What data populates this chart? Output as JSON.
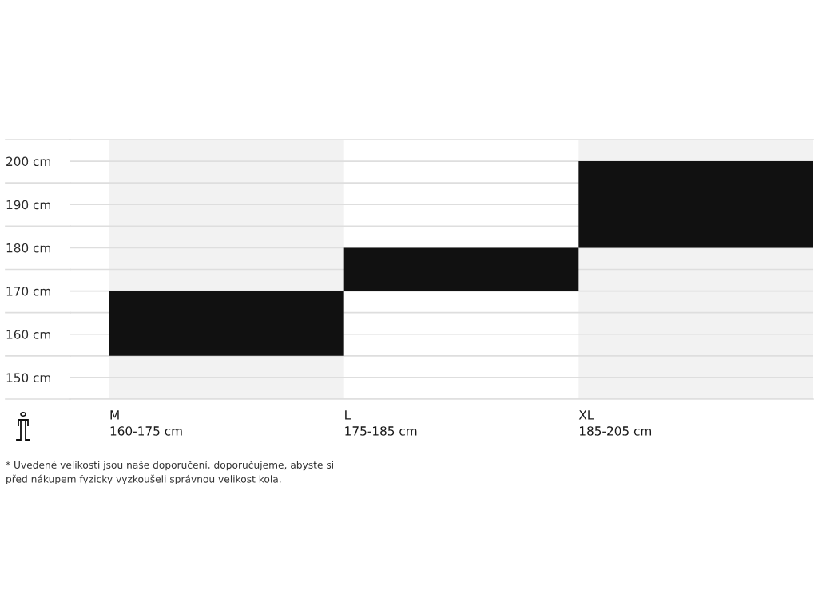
{
  "chart_data": {
    "type": "bar",
    "categories": [
      "M\n160-175 cm",
      "L\n175-185 cm",
      "XL\n185-205 cm"
    ],
    "base": [
      155,
      170,
      180
    ],
    "values": [
      15,
      10,
      20
    ],
    "color": "#111111",
    "ylim": [
      145,
      205
    ],
    "yticks": [
      {
        "value": 145,
        "label": null
      },
      {
        "value": 150,
        "label": "150 cm"
      },
      {
        "value": 155,
        "label": null
      },
      {
        "value": 160,
        "label": "160 cm"
      },
      {
        "value": 165,
        "label": null
      },
      {
        "value": 170,
        "label": "170 cm"
      },
      {
        "value": 175,
        "label": null
      },
      {
        "value": 180,
        "label": "180 cm"
      },
      {
        "value": 185,
        "label": null
      },
      {
        "value": 190,
        "label": "190 cm"
      },
      {
        "value": 195,
        "label": null
      },
      {
        "value": 200,
        "label": "200 cm"
      },
      {
        "value": 205,
        "label": null
      }
    ],
    "grid": "y",
    "annotations": [
      "* Uvedené velikosti jsou naše doporučení. doporučujeme, abyste si\npřed nákupem fyzicky vyzkoušeli správnou velikost kola."
    ]
  }
}
